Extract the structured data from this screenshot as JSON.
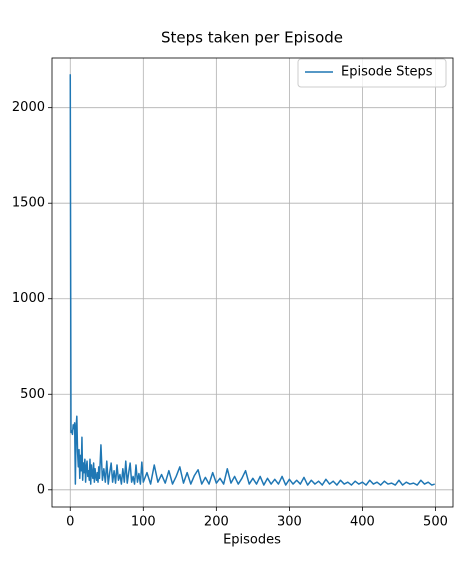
{
  "chart_data": {
    "type": "line",
    "title": "Steps taken per Episode",
    "xlabel": "Episodes",
    "x": [
      0,
      1,
      2,
      3,
      4,
      5,
      6,
      7,
      8,
      9,
      10,
      11,
      12,
      13,
      14,
      15,
      16,
      17,
      18,
      19,
      20,
      21,
      22,
      23,
      24,
      25,
      26,
      27,
      28,
      29,
      30,
      31,
      32,
      33,
      34,
      35,
      36,
      37,
      38,
      39,
      40,
      42,
      44,
      46,
      48,
      50,
      52,
      54,
      56,
      58,
      60,
      62,
      64,
      66,
      68,
      70,
      72,
      74,
      76,
      78,
      80,
      82,
      84,
      86,
      88,
      90,
      92,
      94,
      96,
      98,
      100,
      105,
      110,
      115,
      120,
      125,
      130,
      135,
      140,
      145,
      150,
      155,
      160,
      165,
      170,
      175,
      180,
      185,
      190,
      195,
      200,
      205,
      210,
      215,
      220,
      225,
      230,
      235,
      240,
      245,
      250,
      255,
      260,
      265,
      270,
      275,
      280,
      285,
      290,
      295,
      300,
      305,
      310,
      315,
      320,
      325,
      330,
      335,
      340,
      345,
      350,
      355,
      360,
      365,
      370,
      375,
      380,
      385,
      390,
      395,
      400,
      405,
      410,
      415,
      420,
      425,
      430,
      435,
      440,
      445,
      450,
      455,
      460,
      465,
      470,
      475,
      480,
      485,
      490,
      495,
      499
    ],
    "series": [
      {
        "name": "Episode Steps",
        "color": "#1f77b4",
        "values": [
          2175,
          300,
          310,
          290,
          340,
          320,
          350,
          30,
          330,
          385,
          200,
          120,
          210,
          60,
          180,
          100,
          275,
          50,
          140,
          90,
          160,
          40,
          120,
          150,
          70,
          100,
          50,
          160,
          30,
          130,
          80,
          60,
          140,
          40,
          110,
          70,
          50,
          90,
          40,
          120,
          60,
          235,
          50,
          110,
          40,
          150,
          30,
          90,
          140,
          40,
          100,
          35,
          130,
          50,
          80,
          30,
          110,
          40,
          150,
          35,
          90,
          140,
          40,
          70,
          30,
          130,
          40,
          85,
          30,
          145,
          40,
          90,
          30,
          130,
          40,
          80,
          35,
          100,
          30,
          70,
          120,
          35,
          90,
          30,
          75,
          105,
          30,
          65,
          30,
          90,
          35,
          60,
          30,
          110,
          35,
          70,
          30,
          60,
          100,
          30,
          60,
          30,
          70,
          25,
          60,
          30,
          55,
          30,
          70,
          25,
          55,
          30,
          50,
          30,
          65,
          25,
          50,
          30,
          45,
          25,
          55,
          30,
          45,
          25,
          50,
          30,
          40,
          25,
          45,
          30,
          40,
          25,
          50,
          30,
          40,
          25,
          45,
          30,
          35,
          25,
          50,
          25,
          40,
          30,
          35,
          25,
          50,
          30,
          40,
          25,
          30
        ]
      }
    ],
    "xlim": [
      -25,
      524
    ],
    "ylim": [
      -90,
      2260
    ],
    "xticks": [
      0,
      100,
      200,
      300,
      400,
      500
    ],
    "yticks": [
      0,
      500,
      1000,
      1500,
      2000
    ],
    "grid": true,
    "legend": "upper right"
  }
}
